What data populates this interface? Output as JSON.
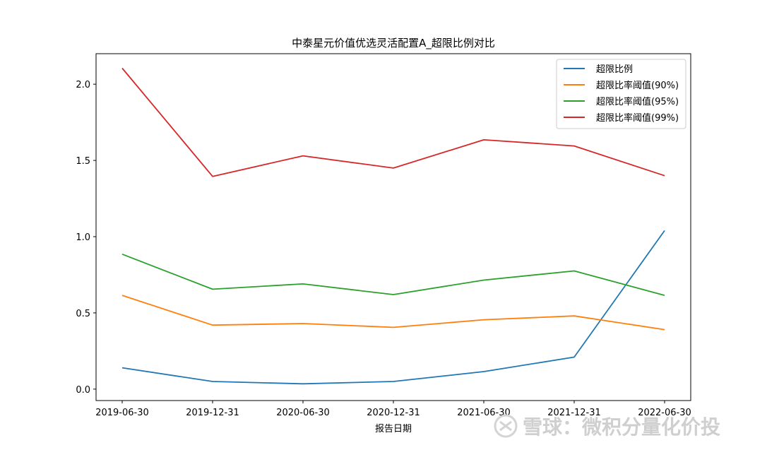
{
  "chart_data": {
    "type": "line",
    "title": "中泰星元价值优选灵活配置A_超限比例对比",
    "xlabel": "报告日期",
    "ylabel": "",
    "categories": [
      "2019-06-30",
      "2019-12-31",
      "2020-06-30",
      "2020-12-31",
      "2021-06-30",
      "2021-12-31",
      "2022-06-30"
    ],
    "yticks": [
      "0.0",
      "0.5",
      "1.0",
      "1.5",
      "2.0"
    ],
    "ylim": [
      -0.075,
      2.2
    ],
    "grid": false,
    "legend_position": "top-right",
    "series": [
      {
        "name": "超限比例",
        "color": "#1f77b4",
        "values": [
          0.14,
          0.05,
          0.035,
          0.05,
          0.115,
          0.21,
          1.04
        ]
      },
      {
        "name": "超限比率阈值(90%)",
        "color": "#ff7f0e",
        "values": [
          0.615,
          0.42,
          0.43,
          0.405,
          0.455,
          0.48,
          0.39
        ]
      },
      {
        "name": "超限比率阈值(95%)",
        "color": "#2ca02c",
        "values": [
          0.885,
          0.655,
          0.69,
          0.62,
          0.715,
          0.775,
          0.615
        ]
      },
      {
        "name": "超限比率阈值(99%)",
        "color": "#d62728",
        "values": [
          2.105,
          1.395,
          1.53,
          1.45,
          1.635,
          1.595,
          1.4
        ]
      }
    ]
  },
  "watermark": {
    "text": "雪球：微积分量化价投",
    "icon": "snowball-logo-icon"
  }
}
